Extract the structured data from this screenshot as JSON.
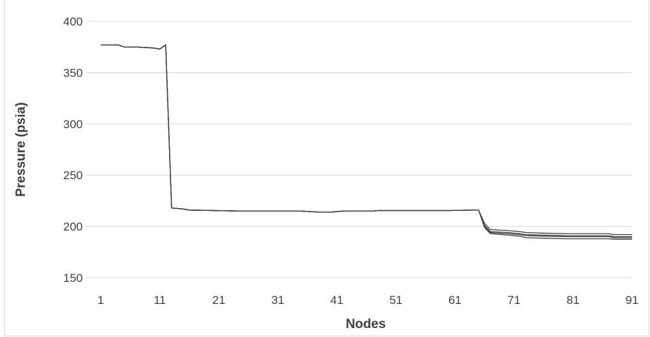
{
  "chart_data": {
    "type": "line",
    "title": "",
    "xlabel": "Nodes",
    "ylabel": "Pressure (psia)",
    "ylim": [
      150,
      400
    ],
    "y_ticks": [
      "150",
      "200",
      "250",
      "300",
      "350",
      "400"
    ],
    "x_ticks": [
      "1",
      "11",
      "21",
      "31",
      "41",
      "51",
      "61",
      "71",
      "81",
      "91"
    ],
    "xlim": [
      1,
      91
    ],
    "grid": true,
    "legend": "none",
    "line_color": "#404040",
    "series": [
      {
        "x": [
          1,
          4,
          5,
          7,
          10,
          11,
          12,
          13,
          15,
          16,
          25,
          35,
          38,
          40,
          42,
          47,
          48,
          60,
          64,
          65,
          66,
          67,
          70,
          72,
          73,
          76,
          80,
          87,
          88,
          91
        ],
        "values": [
          377,
          377,
          375,
          375,
          374,
          373,
          377,
          218,
          217,
          216,
          215,
          215,
          214,
          214,
          215,
          215,
          215.5,
          215.5,
          216,
          216,
          203,
          197,
          196,
          195,
          194,
          193.5,
          193,
          193,
          192,
          192
        ]
      },
      {
        "x": [
          1,
          4,
          5,
          7,
          10,
          11,
          12,
          13,
          15,
          16,
          25,
          35,
          38,
          40,
          42,
          47,
          48,
          60,
          64,
          65,
          66,
          67,
          70,
          72,
          73,
          76,
          80,
          87,
          88,
          91
        ],
        "values": [
          377,
          377,
          375,
          375,
          374,
          373,
          377,
          218,
          217,
          216,
          215,
          215,
          214,
          214,
          215,
          215,
          215.5,
          215.5,
          216,
          216,
          201,
          195,
          194,
          193,
          192,
          191.5,
          191,
          191,
          190,
          190
        ]
      },
      {
        "x": [
          1,
          4,
          5,
          7,
          10,
          11,
          12,
          13,
          15,
          16,
          25,
          35,
          38,
          40,
          42,
          47,
          48,
          60,
          64,
          65,
          66,
          67,
          70,
          72,
          73,
          76,
          80,
          87,
          88,
          91
        ],
        "values": [
          377,
          377,
          375,
          375,
          374,
          373,
          377,
          218,
          217,
          216,
          215,
          215,
          214,
          214,
          215,
          215,
          215.5,
          215.5,
          216,
          216,
          200,
          194,
          193,
          192,
          191,
          190.5,
          190,
          190,
          189,
          189
        ]
      },
      {
        "x": [
          1,
          4,
          5,
          7,
          10,
          11,
          12,
          13,
          15,
          16,
          25,
          35,
          38,
          40,
          42,
          47,
          48,
          60,
          64,
          65,
          66,
          67,
          70,
          72,
          73,
          76,
          80,
          87,
          88,
          91
        ],
        "values": [
          377,
          377,
          375,
          375,
          374,
          373,
          377,
          218,
          217,
          216,
          215,
          215,
          214,
          214,
          215,
          215,
          215.5,
          215.5,
          216,
          216,
          199,
          193,
          191.5,
          190.5,
          189,
          188.5,
          188,
          188,
          187.5,
          187.5
        ]
      }
    ]
  }
}
